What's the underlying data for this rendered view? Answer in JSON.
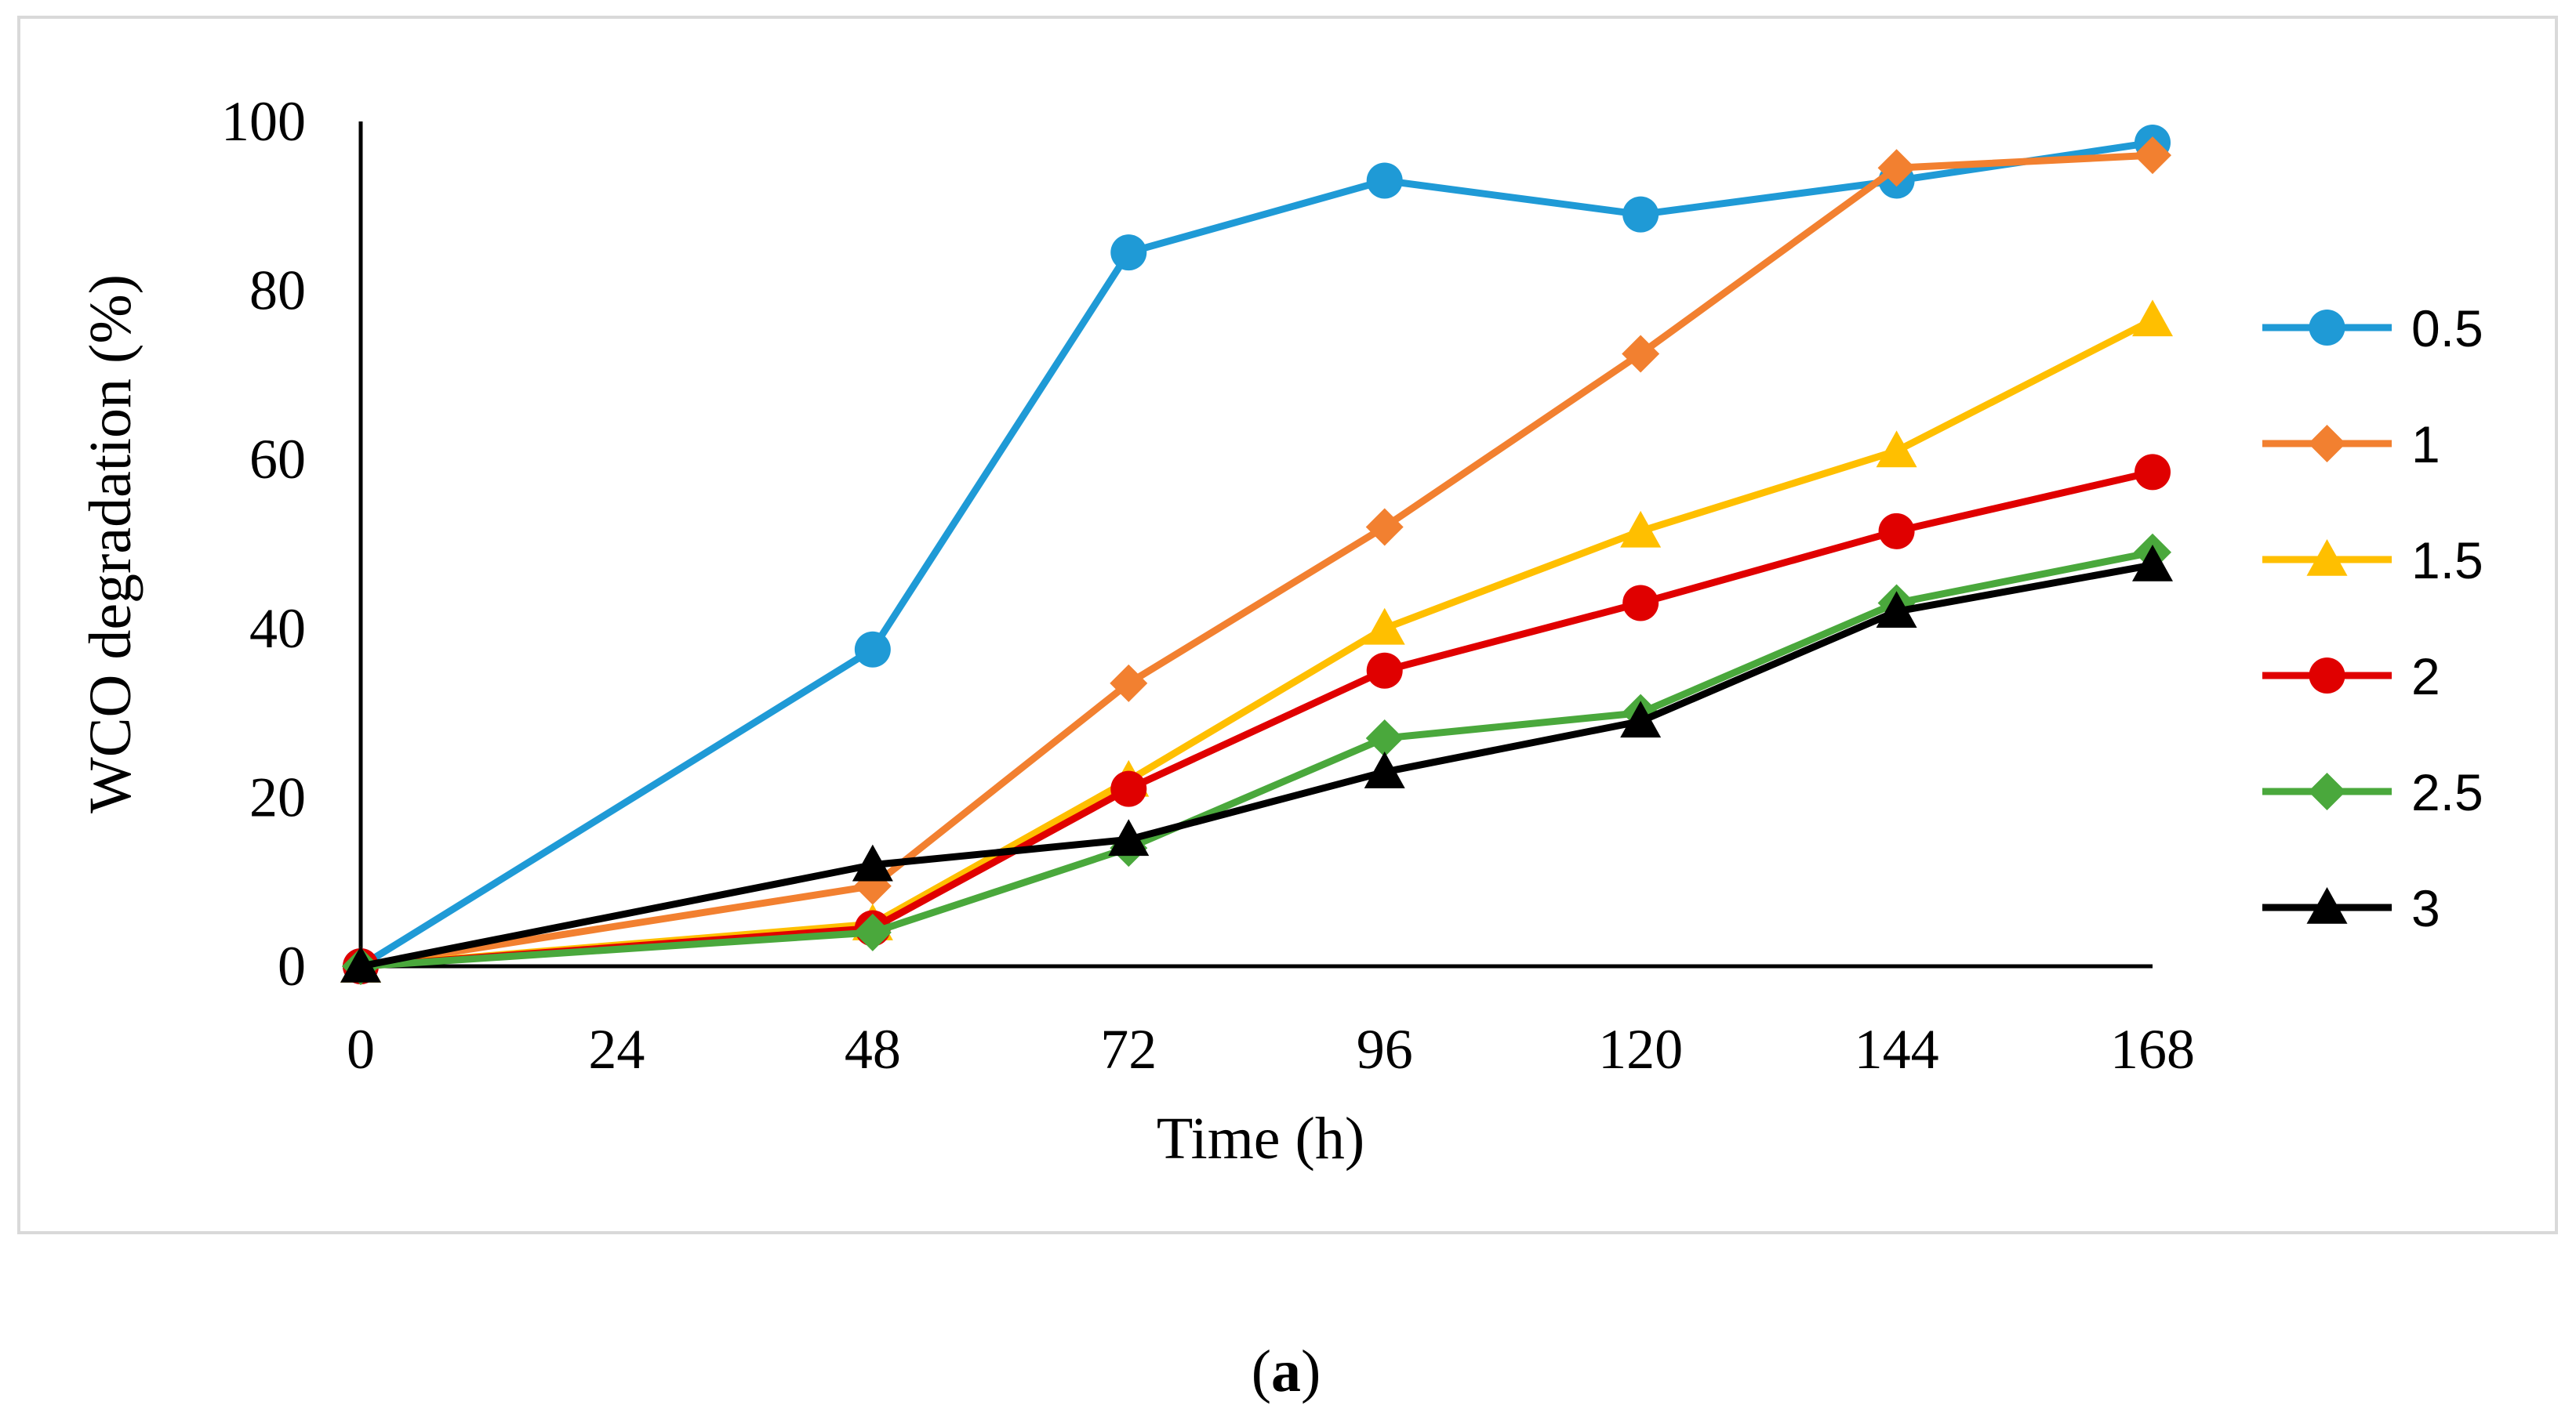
{
  "chart_data": {
    "type": "line",
    "title": "",
    "xlabel": "Time (h)",
    "ylabel": "WCO degradation (%)",
    "x": [
      0,
      48,
      72,
      96,
      120,
      144,
      168
    ],
    "x_ticks": [
      0,
      24,
      48,
      72,
      96,
      120,
      144,
      168
    ],
    "y_ticks": [
      0,
      20,
      40,
      60,
      80,
      100
    ],
    "xlim": [
      0,
      168
    ],
    "ylim": [
      0,
      100
    ],
    "grid": false,
    "legend_position": "right",
    "series": [
      {
        "name": "0.5",
        "color": "#1f9ad6",
        "marker": "circle",
        "values": [
          0,
          37.5,
          84.5,
          93,
          89,
          93,
          97.5
        ]
      },
      {
        "name": "1",
        "color": "#f28030",
        "marker": "diamond",
        "values": [
          0,
          9.5,
          33.5,
          52,
          72.5,
          94.5,
          96
        ]
      },
      {
        "name": "1.5",
        "color": "#ffbf00",
        "marker": "triangle",
        "values": [
          0,
          5,
          22,
          40,
          51.5,
          61,
          76.5
        ]
      },
      {
        "name": "2",
        "color": "#e00000",
        "marker": "circle",
        "values": [
          0,
          4.5,
          21,
          35,
          43,
          51.5,
          58.5
        ]
      },
      {
        "name": "2.5",
        "color": "#4aa83c",
        "marker": "diamond",
        "values": [
          0,
          4,
          14,
          27,
          30,
          43,
          49
        ]
      },
      {
        "name": "3",
        "color": "#000000",
        "marker": "triangle",
        "values": [
          0,
          12,
          15,
          23,
          29,
          42,
          47.5
        ]
      }
    ]
  },
  "caption": {
    "open": "(",
    "letter": "a",
    "close": ")"
  }
}
